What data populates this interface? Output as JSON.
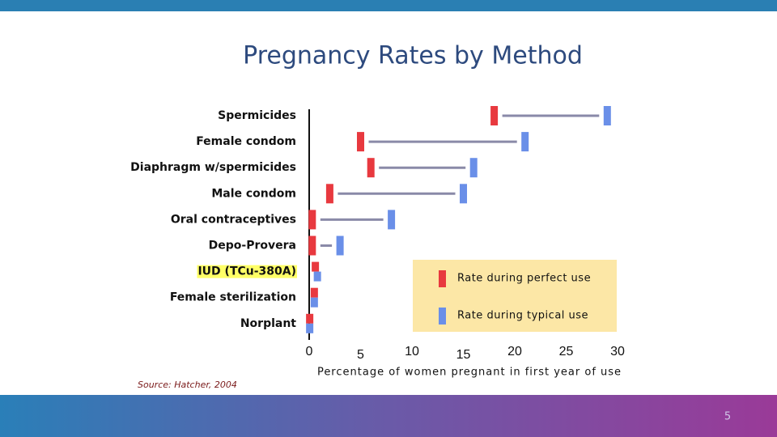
{
  "chart_data": {
    "type": "dumbbell",
    "title": "Pregnancy Rates by Method",
    "categories": [
      "Spermicides",
      "Female condom",
      "Diaphragm w/spermicides",
      "Male condom",
      "Oral contraceptives",
      "Depo-Provera",
      "IUD (TCu-380A)",
      "Female sterilization",
      "Norplant"
    ],
    "highlighted_category": "IUD (TCu-380A)",
    "highlight_color": "#ffff66",
    "series": [
      {
        "name": "Rate during perfect use",
        "color": "#e8393f",
        "values": [
          18,
          5,
          6,
          2,
          0.3,
          0.3,
          0.6,
          0.5,
          0.05
        ]
      },
      {
        "name": "Rate during typical use",
        "color": "#6a8fe8",
        "values": [
          29,
          21,
          16,
          15,
          8,
          3,
          0.8,
          0.5,
          0.05
        ]
      }
    ],
    "connector_color": "#8a8aa8",
    "xlim": [
      0,
      30
    ],
    "xticks": [
      0,
      5,
      10,
      15,
      20,
      25,
      30
    ],
    "xlabel": "Percentage of women pregnant in first year of use",
    "legend_color": "#fce7a6"
  },
  "source": "Source: Hatcher, 2004",
  "page_number": "5"
}
